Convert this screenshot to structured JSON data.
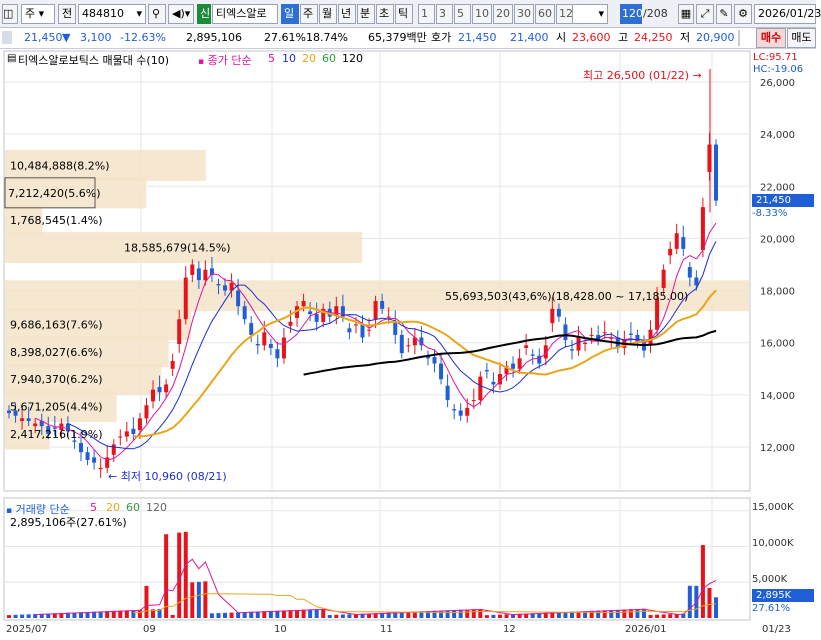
{
  "toolbar": {
    "mode": "주",
    "market": "전",
    "code": "484810",
    "badge": "신",
    "stock_name": "티엑스알로",
    "periods": [
      "일",
      "주",
      "월",
      "년",
      "분",
      "초",
      "틱"
    ],
    "minutes": [
      "1",
      "3",
      "5",
      "10",
      "20",
      "30",
      "60",
      "120"
    ],
    "count_value": "120",
    "count_total": "/208",
    "date": "2026/01/23",
    "buy_label": "매수",
    "sell_label": "매도"
  },
  "quote": {
    "price": "21,450",
    "change": "3,100",
    "change_rate": "-12.63%",
    "volume": "2,895,106",
    "turnover": "27.61%",
    "vol_ratio": "18.74%",
    "amount": "65,379백만",
    "ask_label": "호가",
    "ask": "21,450",
    "bid": "21,400",
    "open_label": "시",
    "open": "23,600",
    "high_label": "고",
    "high": "24,250",
    "low_label": "저",
    "low": "20,900"
  },
  "price_panel": {
    "title": "티엑스알로보틱스 매물대 수(10)",
    "ma_title": "종가 단순",
    "ma_periods": [
      "5",
      "10",
      "20",
      "60",
      "120"
    ],
    "lc_label": "LC:95.71",
    "hc_label": "HC:-19.06",
    "max_label": "최고 26,500 (01/22)",
    "min_label": "최저 10,960 (08/21)",
    "price_labels": [
      "26,000",
      "24,000",
      "22,000",
      "20,000",
      "18,000",
      "16,000",
      "14,000",
      "12,000"
    ],
    "current_tag": "21,450",
    "current_pct": "-8.33%"
  },
  "volume_profile": [
    {
      "label": "10,484,888(8.2%)",
      "price": 22800,
      "frac": 0.27
    },
    {
      "label": "7,212,420(5.6%)",
      "price": 21750,
      "frac": 0.19
    },
    {
      "label": "1,768,545(1.4%)",
      "price": 20700,
      "frac": 0.05
    },
    {
      "label": "18,585,679(14.5%)",
      "price": 19650,
      "frac": 0.48
    },
    {
      "label": "55,693,503(43,6%)(18,428.00 ~ 17,185.00)",
      "price": 17800,
      "frac": 1.0
    },
    {
      "label": "9,686,163(7.6%)",
      "price": 16700,
      "frac": 0.25
    },
    {
      "label": "8,398,027(6.6%)",
      "price": 15650,
      "frac": 0.22
    },
    {
      "label": "7,940,370(6.2%)",
      "price": 14600,
      "frac": 0.21
    },
    {
      "label": "5,671,205(4.4%)",
      "price": 13550,
      "frac": 0.15
    },
    {
      "label": "2,417,216(1.9%)",
      "price": 12500,
      "frac": 0.06
    }
  ],
  "volume_panel": {
    "title": "거래량 단순",
    "ma_periods": [
      "5",
      "20",
      "60",
      "120"
    ],
    "current": "2,895,106주(27.61%)",
    "labels": [
      "15,000K",
      "10,000K",
      "5,000K"
    ],
    "current_tag": "2,895K",
    "current_pct": "27.61%"
  },
  "x_labels": [
    "2025/07",
    "09",
    "10",
    "11",
    "12",
    "2026/01",
    "01/23"
  ],
  "colors": {
    "up": "#e8121a",
    "down": "#1f5ed6",
    "ma5": "#e0169a",
    "ma10": "#1c2fd4",
    "ma20": "#e8a719",
    "ma60": "#2e9c3c",
    "ma120": "#000000",
    "profile": "#f5e3c8"
  }
}
